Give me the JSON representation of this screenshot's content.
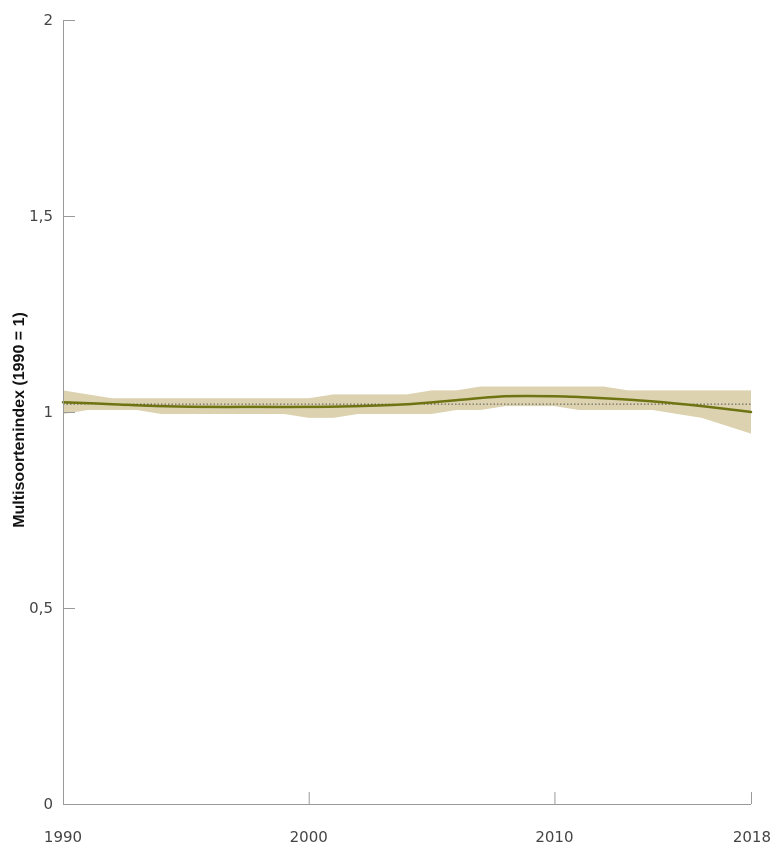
{
  "chart_data": {
    "type": "line",
    "title": "",
    "xlabel": "",
    "ylabel": "Multisoortenindex (1990 = 1)",
    "xlim": [
      1990,
      2018
    ],
    "ylim": [
      0,
      2
    ],
    "x_ticks": [
      {
        "value": 1990,
        "label": "1990"
      },
      {
        "value": 2000,
        "label": "2000"
      },
      {
        "value": 2010,
        "label": "2010"
      },
      {
        "value": 2018,
        "label": "2018"
      }
    ],
    "y_ticks": [
      {
        "value": 0,
        "label": "0"
      },
      {
        "value": 0.5,
        "label": "0,5"
      },
      {
        "value": 1,
        "label": "1"
      },
      {
        "value": 1.5,
        "label": "1,5"
      },
      {
        "value": 2,
        "label": "2"
      }
    ],
    "grid": false,
    "reference_line": {
      "y": 1.02,
      "style": "dotted",
      "color": "#555555"
    },
    "series": [
      {
        "kind": "trend",
        "color": "#6f7412",
        "x": [
          1990,
          1992,
          1994,
          1996,
          1998,
          2000,
          2002,
          2004,
          2006,
          2008,
          2010,
          2012,
          2014,
          2016,
          2018
        ],
        "values": [
          1.025,
          1.02,
          1.015,
          1.013,
          1.013,
          1.013,
          1.015,
          1.02,
          1.03,
          1.04,
          1.04,
          1.035,
          1.027,
          1.015,
          1.0
        ]
      }
    ],
    "band": {
      "color": "#dcd2b0",
      "x": [
        1990,
        1991,
        1992,
        1993,
        1994,
        1995,
        1996,
        1997,
        1998,
        1999,
        2000,
        2001,
        2002,
        2003,
        2004,
        2005,
        2006,
        2007,
        2008,
        2009,
        2010,
        2011,
        2012,
        2013,
        2014,
        2015,
        2016,
        2017,
        2018
      ],
      "upper": [
        1.055,
        1.045,
        1.035,
        1.035,
        1.035,
        1.035,
        1.035,
        1.035,
        1.035,
        1.035,
        1.035,
        1.045,
        1.045,
        1.045,
        1.045,
        1.055,
        1.055,
        1.065,
        1.065,
        1.065,
        1.065,
        1.065,
        1.065,
        1.055,
        1.055,
        1.055,
        1.055,
        1.055,
        1.055
      ],
      "lower": [
        0.995,
        1.005,
        1.005,
        1.005,
        0.995,
        0.995,
        0.995,
        0.995,
        0.995,
        0.995,
        0.985,
        0.985,
        0.995,
        0.995,
        0.995,
        0.995,
        1.005,
        1.005,
        1.015,
        1.015,
        1.015,
        1.005,
        1.005,
        1.005,
        1.005,
        0.995,
        0.985,
        0.965,
        0.945
      ]
    }
  }
}
